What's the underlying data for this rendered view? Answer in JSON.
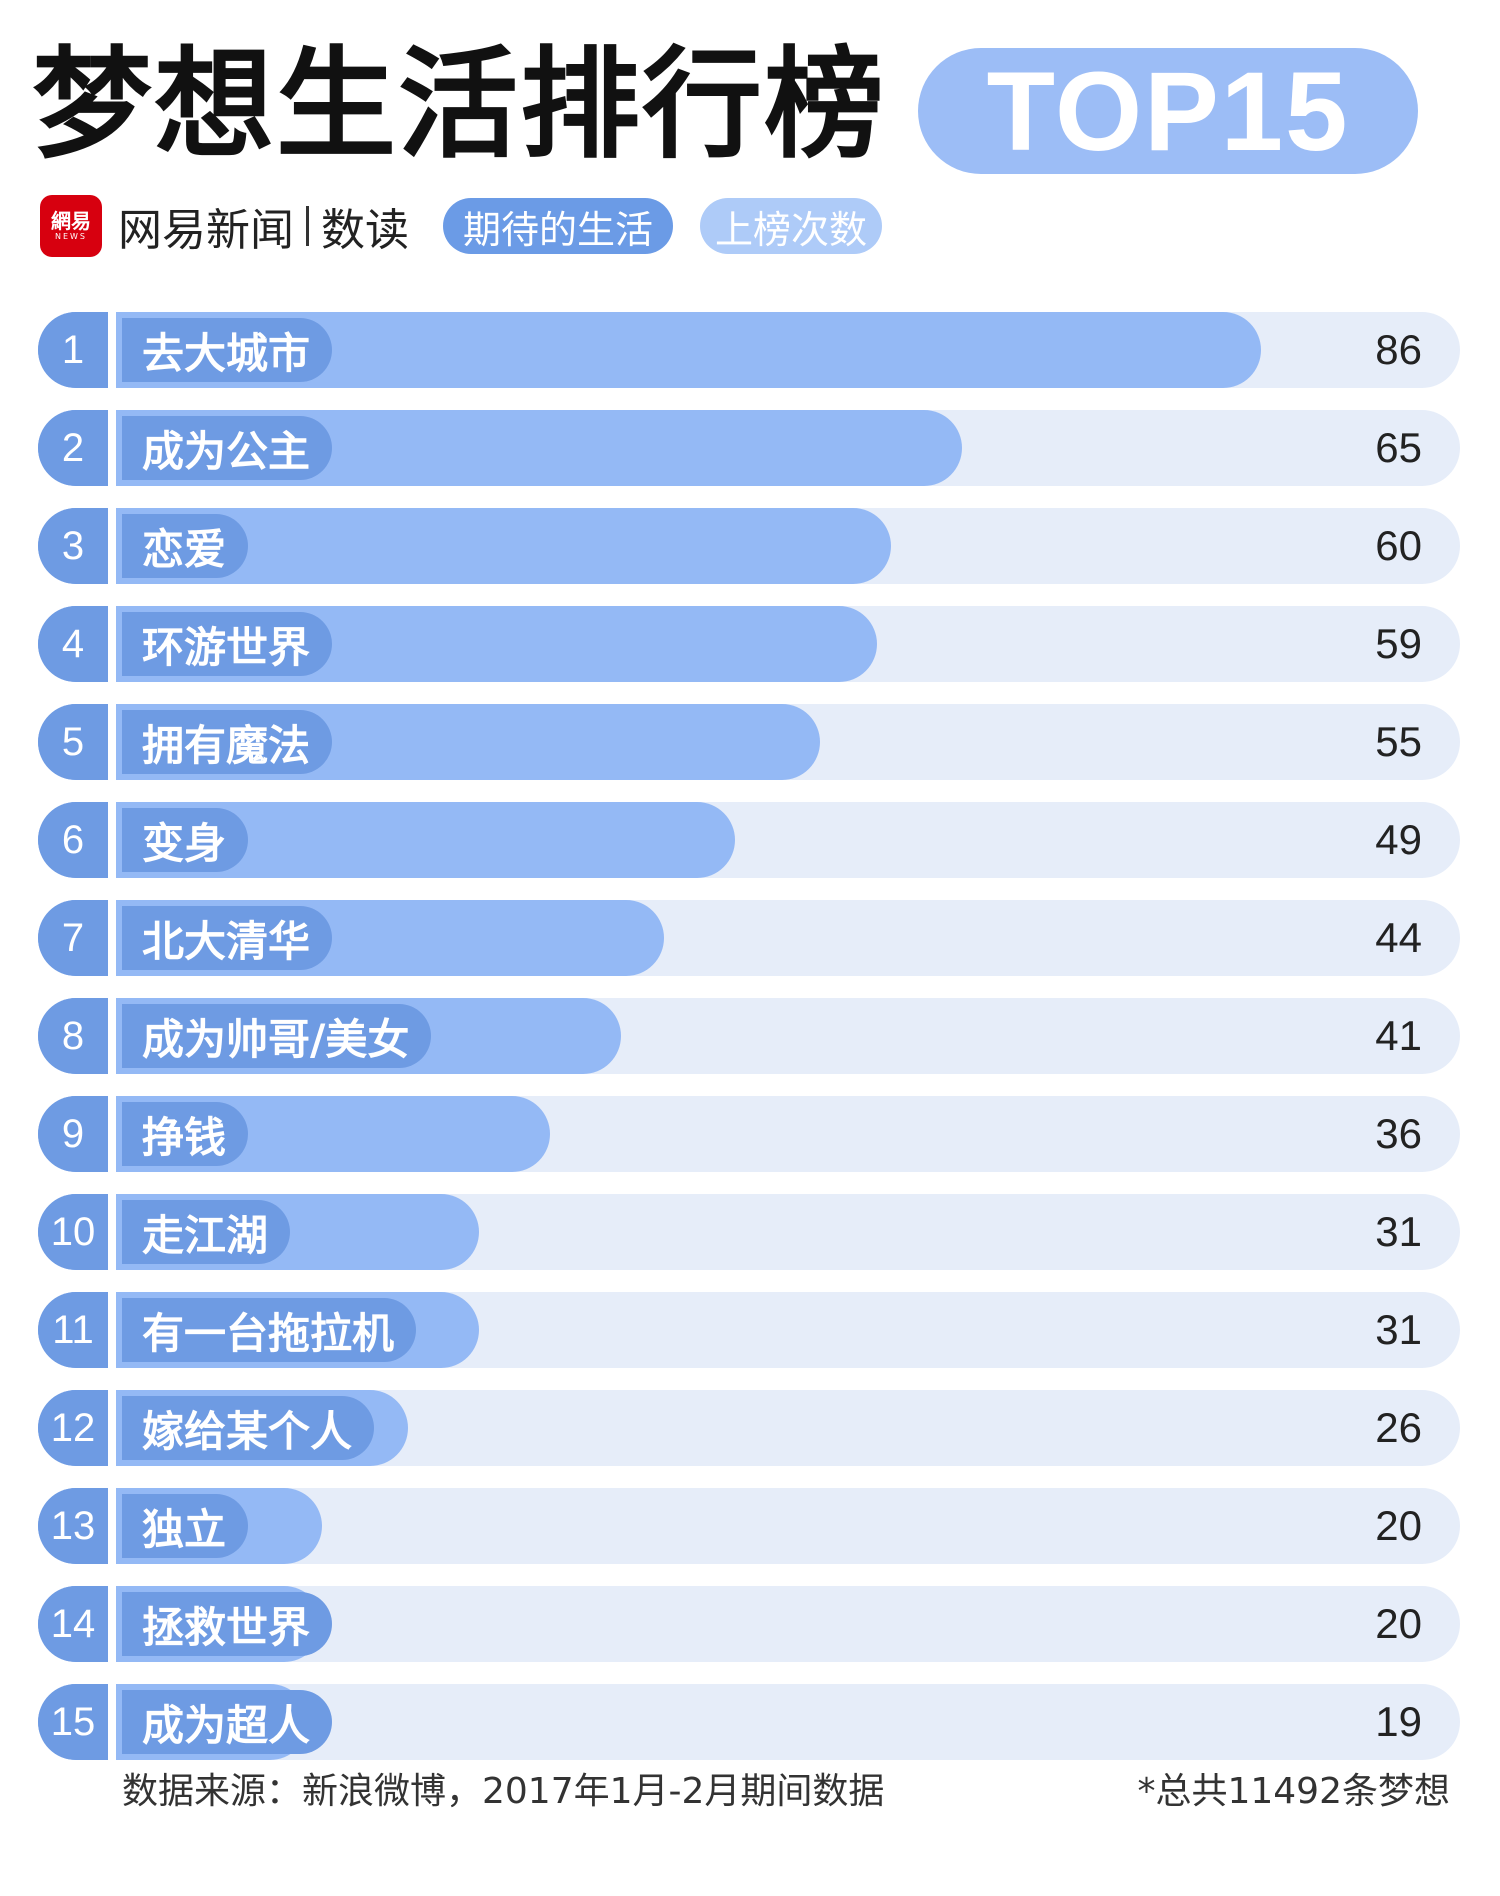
{
  "header": {
    "title": "梦想生活排行榜",
    "badge": "TOP15",
    "logo_text": "網易",
    "logo_sub": "NEWS",
    "brand_left": "网易新闻",
    "brand_right": "数读"
  },
  "legend": {
    "dark_label": "期待的生活",
    "light_label": "上榜次数",
    "dark_color": "#6e9be3",
    "light_color": "#aecbf8"
  },
  "chart_data": {
    "type": "bar",
    "orientation": "horizontal",
    "title": "梦想生活排行榜",
    "xlim": [
      0,
      100
    ],
    "ranks": [
      "1",
      "2",
      "3",
      "4",
      "5",
      "6",
      "7",
      "8",
      "9",
      "10",
      "11",
      "12",
      "13",
      "14",
      "15"
    ],
    "categories": [
      "去大城市",
      "成为公主",
      "恋爱",
      "环游世界",
      "拥有魔法",
      "变身",
      "北大清华",
      "成为帅哥/美女",
      "挣钱",
      "走江湖",
      "有一台拖拉机",
      "嫁给某个人",
      "独立",
      "拯救世界",
      "成为超人"
    ],
    "values": [
      86,
      65,
      60,
      59,
      55,
      49,
      44,
      41,
      36,
      31,
      31,
      26,
      20,
      20,
      19
    ],
    "bar_color": "#94b9f5",
    "track_color": "#e6edf9",
    "label_color": "#6e9be3"
  },
  "footer": {
    "source": "数据来源：新浪微博，2017年1月-2月期间数据",
    "total": "*总共11492条梦想"
  }
}
